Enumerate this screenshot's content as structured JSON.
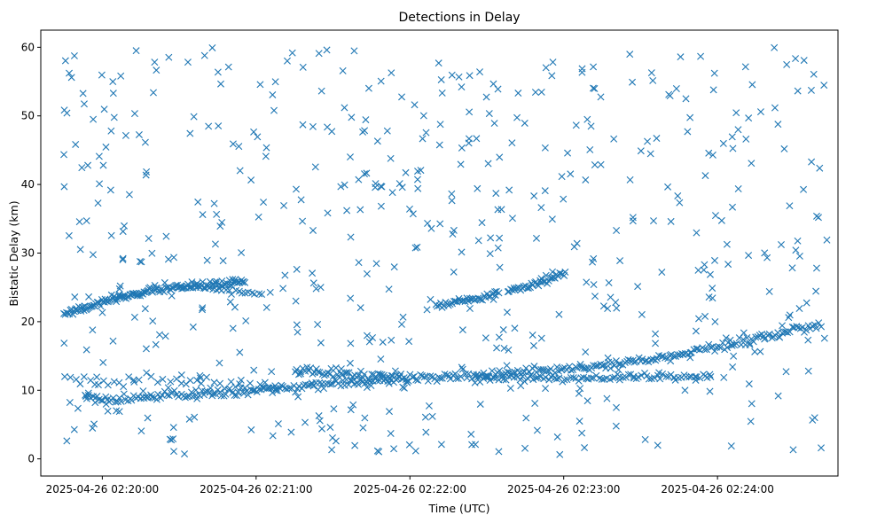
{
  "chart_data": {
    "type": "scatter",
    "title": "Detections in Delay",
    "xlabel": "Time (UTC)",
    "ylabel": "Bistatic Delay (km)",
    "marker": "x",
    "color": "#1f77b4",
    "grid": false,
    "xlim": [
      "2025-04-26 02:19:36",
      "2025-04-26 02:24:47"
    ],
    "ylim": [
      -2.5,
      62.5
    ],
    "x_ticks": [
      "2025-04-26 02:20:00",
      "2025-04-26 02:21:00",
      "2025-04-26 02:22:00",
      "2025-04-26 02:23:00",
      "2025-04-26 02:24:00"
    ],
    "y_ticks": [
      0,
      10,
      20,
      30,
      40,
      50,
      60
    ],
    "tracks": [
      {
        "points": [
          [
            "2025-04-26 02:19:45",
            21.2
          ],
          [
            "2025-04-26 02:19:57",
            22.5
          ],
          [
            "2025-04-26 02:20:10",
            23.8
          ],
          [
            "2025-04-26 02:20:25",
            24.9
          ],
          [
            "2025-04-26 02:20:40",
            25.3
          ],
          [
            "2025-04-26 02:20:56",
            25.8
          ]
        ],
        "count": 150,
        "jitter": 0.25
      },
      {
        "points": [
          [
            "2025-04-26 02:20:40",
            24.8
          ],
          [
            "2025-04-26 02:21:03",
            24.1
          ]
        ],
        "count": 18,
        "jitter": 0.2
      },
      {
        "points": [
          [
            "2025-04-26 02:22:10",
            22.4
          ],
          [
            "2025-04-26 02:22:25",
            23.3
          ],
          [
            "2025-04-26 02:22:35",
            24.2
          ]
        ],
        "count": 40,
        "jitter": 0.2
      },
      {
        "points": [
          [
            "2025-04-26 02:22:38",
            24.4
          ],
          [
            "2025-04-26 02:22:50",
            25.6
          ],
          [
            "2025-04-26 02:23:01",
            27.3
          ]
        ],
        "count": 40,
        "jitter": 0.25
      },
      {
        "points": [
          [
            "2025-04-26 02:19:53",
            9.0
          ],
          [
            "2025-04-26 02:20:10",
            8.7
          ],
          [
            "2025-04-26 02:20:28",
            9.3
          ],
          [
            "2025-04-26 02:20:47",
            9.7
          ],
          [
            "2025-04-26 02:21:05",
            10.1
          ],
          [
            "2025-04-26 02:21:25",
            10.8
          ],
          [
            "2025-04-26 02:21:45",
            11.4
          ],
          [
            "2025-04-26 02:22:05",
            11.8
          ],
          [
            "2025-04-26 02:22:25",
            12.2
          ],
          [
            "2025-04-26 02:22:45",
            12.6
          ],
          [
            "2025-04-26 02:23:05",
            13.2
          ],
          [
            "2025-04-26 02:23:25",
            14.0
          ],
          [
            "2025-04-26 02:23:45",
            15.2
          ],
          [
            "2025-04-26 02:24:05",
            16.8
          ],
          [
            "2025-04-26 02:24:25",
            18.3
          ],
          [
            "2025-04-26 02:24:40",
            19.6
          ]
        ],
        "count": 360,
        "jitter": 0.3
      },
      {
        "points": [
          [
            "2025-04-26 02:21:15",
            13.0
          ],
          [
            "2025-04-26 02:21:30",
            12.4
          ],
          [
            "2025-04-26 02:21:45",
            11.8
          ],
          [
            "2025-04-26 02:22:00",
            11.5
          ]
        ],
        "count": 60,
        "jitter": 0.5
      },
      {
        "points": [
          [
            "2025-04-26 02:22:25",
            11.6
          ],
          [
            "2025-04-26 02:22:45",
            11.9
          ],
          [
            "2025-04-26 02:23:05",
            11.5
          ],
          [
            "2025-04-26 02:23:25",
            12.0
          ],
          [
            "2025-04-26 02:23:45",
            12.1
          ],
          [
            "2025-04-26 02:23:58",
            11.9
          ]
        ],
        "count": 90,
        "jitter": 0.25
      },
      {
        "points": [
          [
            "2025-04-26 02:19:45",
            12.0
          ],
          [
            "2025-04-26 02:20:00",
            11.0
          ],
          [
            "2025-04-26 02:20:20",
            11.4
          ],
          [
            "2025-04-26 02:20:40",
            11.0
          ],
          [
            "2025-04-26 02:21:00",
            10.6
          ],
          [
            "2025-04-26 02:21:10",
            10.5
          ]
        ],
        "count": 45,
        "jitter": 0.6
      }
    ],
    "noise": {
      "count": 560,
      "x_range": [
        "2025-04-26 02:19:45",
        "2025-04-26 02:24:43"
      ],
      "y_range": [
        0.5,
        60
      ],
      "seed": 7
    }
  }
}
